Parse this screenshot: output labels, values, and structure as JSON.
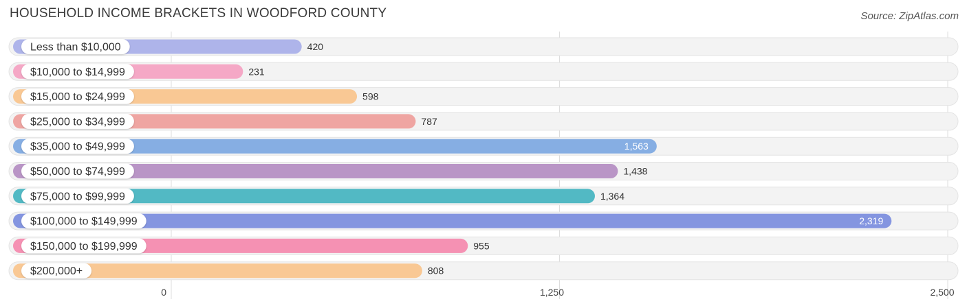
{
  "header": {
    "title": "HOUSEHOLD INCOME BRACKETS IN WOODFORD COUNTY",
    "source": "Source: ZipAtlas.com"
  },
  "chart_data": {
    "type": "bar",
    "orientation": "horizontal",
    "title": "HOUSEHOLD INCOME BRACKETS IN WOODFORD COUNTY",
    "categories": [
      "Less than $10,000",
      "$10,000 to $14,999",
      "$15,000 to $24,999",
      "$25,000 to $34,999",
      "$35,000 to $49,999",
      "$50,000 to $74,999",
      "$75,000 to $99,999",
      "$100,000 to $149,999",
      "$150,000 to $199,999",
      "$200,000+"
    ],
    "values": [
      420,
      231,
      598,
      787,
      1563,
      1438,
      1364,
      2319,
      955,
      808
    ],
    "value_labels": [
      "420",
      "231",
      "598",
      "787",
      "1,563",
      "1,438",
      "1,364",
      "2,319",
      "955",
      "808"
    ],
    "colors": [
      "#aeb4ea",
      "#f5a8c6",
      "#f9c894",
      "#efa5a2",
      "#86aee3",
      "#b995c6",
      "#52b9c4",
      "#8495e0",
      "#f591b3",
      "#f9c894"
    ],
    "xlim": [
      0,
      2500
    ],
    "xticks": [
      0,
      1250,
      2500
    ],
    "xtick_labels": [
      "0",
      "1,250",
      "2,500"
    ],
    "grid": true,
    "xlabel": "",
    "ylabel": ""
  }
}
